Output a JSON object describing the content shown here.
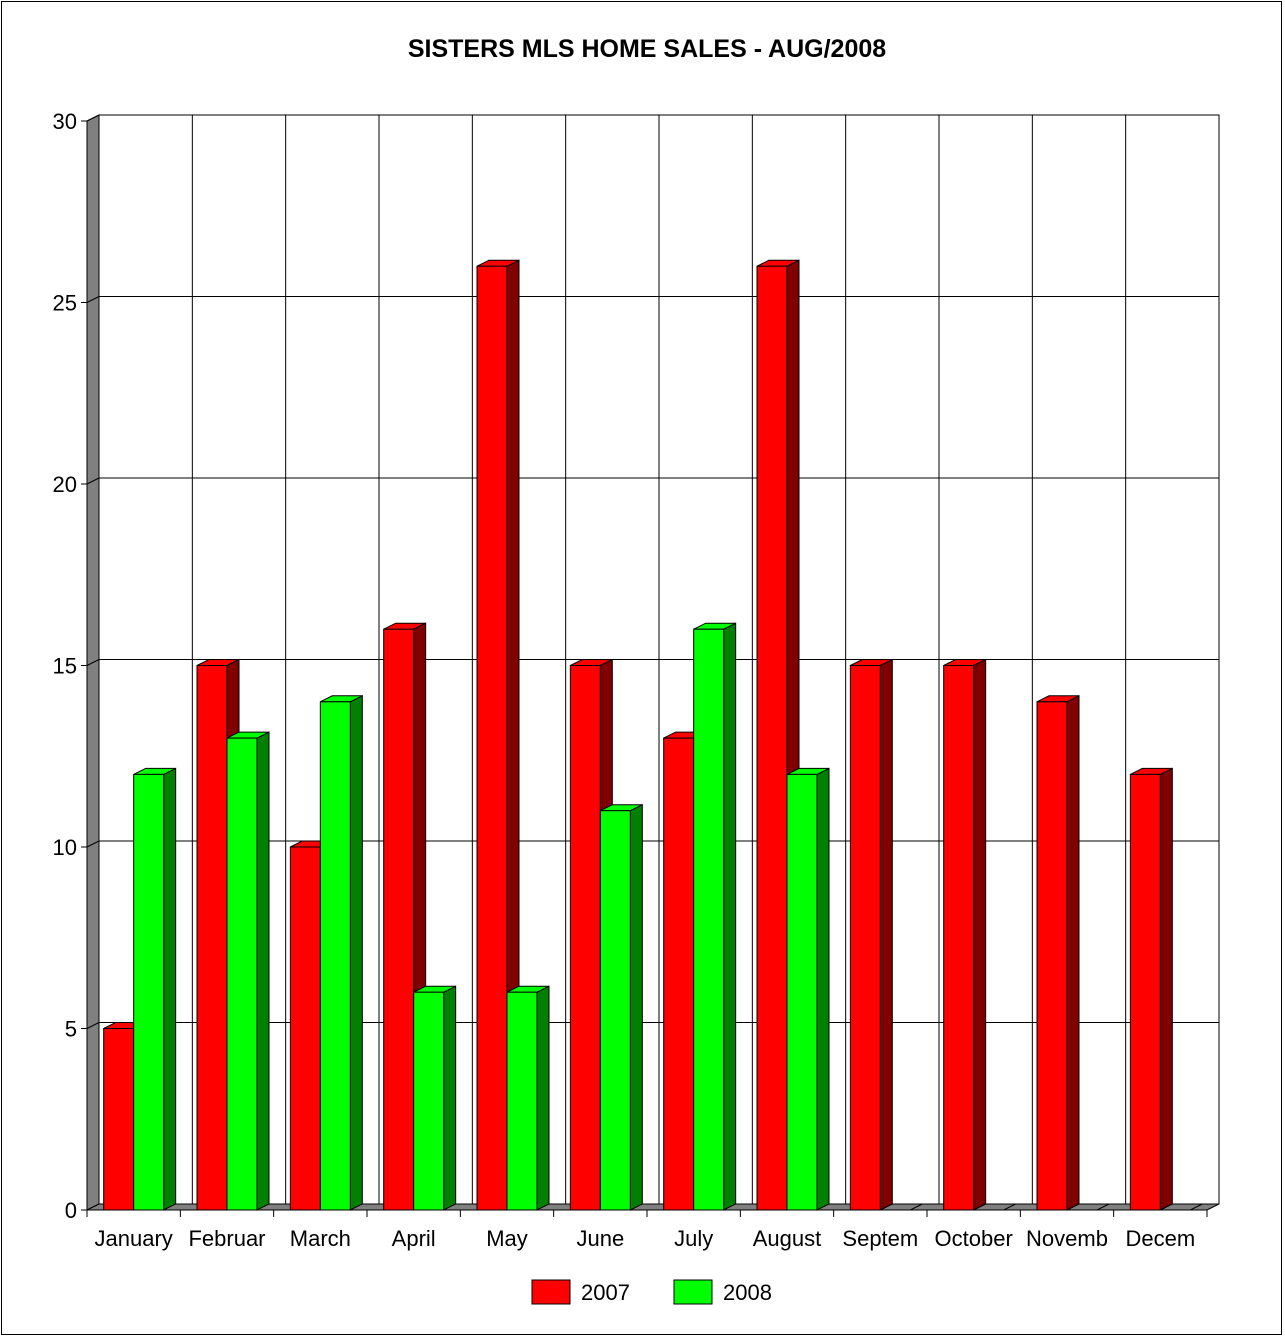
{
  "chart_data": {
    "type": "bar",
    "title": "SISTERS MLS HOME SALES - AUG/2008",
    "xlabel": "",
    "ylabel": "",
    "ylim": [
      0,
      30
    ],
    "yticks": [
      "0",
      "5",
      "10",
      "15",
      "20",
      "25",
      "30"
    ],
    "categories": [
      "January",
      "Februar",
      "March",
      "April",
      "May",
      "June",
      "July",
      "August",
      "Septem",
      "October",
      "Novemb",
      "Decem"
    ],
    "series": [
      {
        "name": "2007",
        "color": "#ff0000",
        "values": [
          5,
          15,
          10,
          16,
          26,
          15,
          13,
          26,
          15,
          15,
          14,
          12
        ]
      },
      {
        "name": "2008",
        "color": "#00ff00",
        "values": [
          12,
          13,
          14,
          6,
          6,
          11,
          16,
          12,
          null,
          null,
          null,
          null
        ]
      }
    ],
    "grid": true,
    "legend": "bottom",
    "style": "3d-column"
  }
}
